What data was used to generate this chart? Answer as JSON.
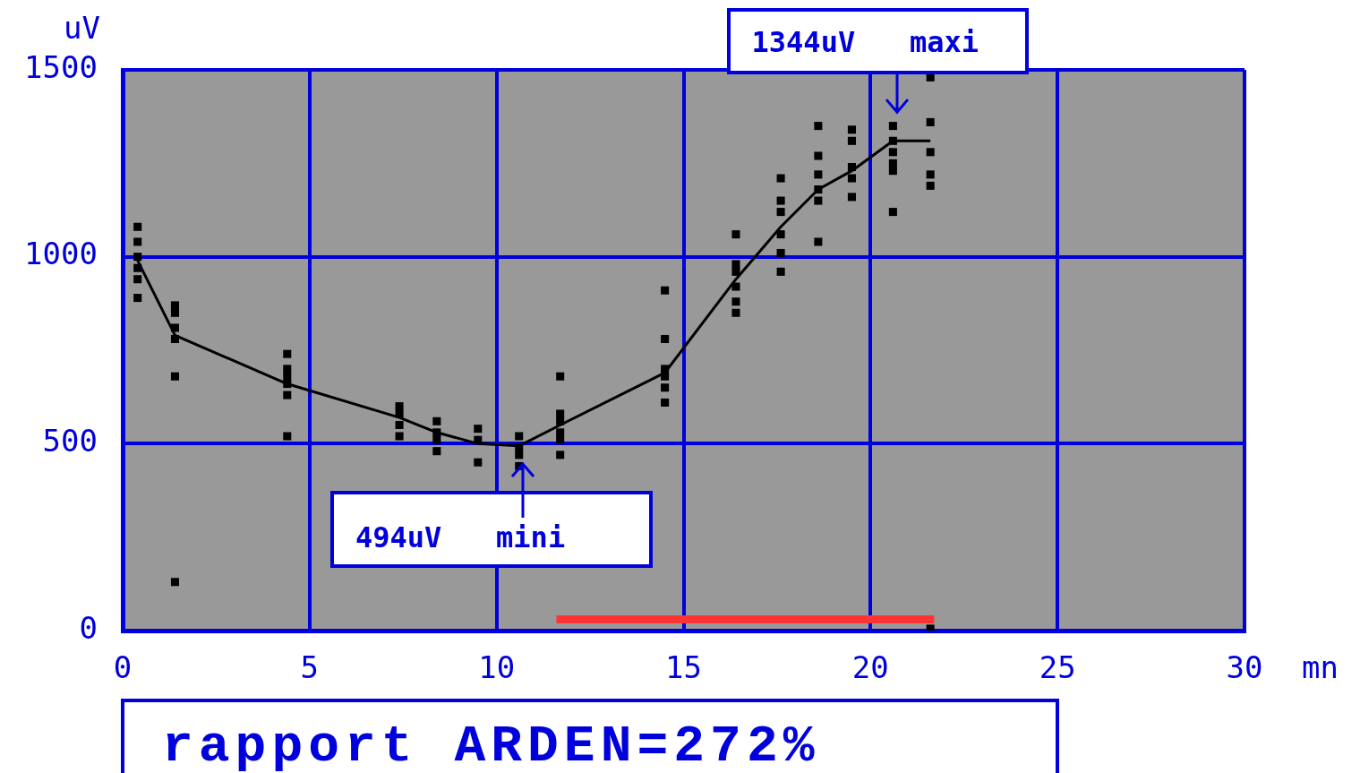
{
  "chart_data": {
    "type": "scatter",
    "xlabel": "mn",
    "ylabel": "uV",
    "xlim": [
      0,
      30
    ],
    "xticks": [
      0,
      5,
      10,
      15,
      20,
      25,
      30
    ],
    "ylim": [
      0,
      1500
    ],
    "yticks": [
      0,
      500,
      1000,
      1500
    ],
    "grid": true,
    "series": [
      {
        "type": "scatter",
        "color": "#000000",
        "marker": "square",
        "x": [
          0.4,
          0.4,
          0.4,
          0.4,
          0.4,
          0.4,
          1.4,
          1.4,
          1.4,
          1.4,
          1.4,
          1.4,
          4.4,
          4.4,
          4.4,
          4.4,
          4.4,
          4.4,
          7.4,
          7.4,
          7.4,
          7.4,
          8.4,
          8.4,
          8.4,
          8.4,
          9.5,
          9.5,
          9.5,
          10.6,
          10.6,
          10.6,
          10.6,
          11.7,
          11.7,
          11.7,
          11.7,
          11.7,
          11.7,
          14.5,
          14.5,
          14.5,
          14.5,
          14.5,
          14.5,
          16.4,
          16.4,
          16.4,
          16.4,
          16.4,
          16.4,
          17.6,
          17.6,
          17.6,
          17.6,
          17.6,
          17.6,
          18.6,
          18.6,
          18.6,
          18.6,
          18.6,
          18.6,
          19.5,
          19.5,
          19.5,
          19.5,
          19.5,
          20.6,
          20.6,
          20.6,
          20.6,
          20.6,
          20.6,
          21.6,
          21.6,
          21.6,
          21.6,
          21.6,
          21.6
        ],
        "values": [
          1080,
          1040,
          1000,
          970,
          940,
          890,
          870,
          850,
          810,
          780,
          680,
          130,
          740,
          700,
          680,
          660,
          630,
          520,
          600,
          580,
          550,
          520,
          560,
          530,
          510,
          480,
          540,
          510,
          450,
          520,
          490,
          470,
          440,
          680,
          580,
          560,
          530,
          510,
          470,
          910,
          780,
          700,
          680,
          650,
          610,
          1060,
          980,
          960,
          920,
          880,
          850,
          1210,
          1150,
          1120,
          1060,
          1010,
          960,
          1350,
          1270,
          1220,
          1180,
          1150,
          1040,
          1340,
          1310,
          1240,
          1210,
          1160,
          1350,
          1310,
          1280,
          1250,
          1230,
          1120,
          1480,
          1360,
          1280,
          1220,
          1190,
          5
        ]
      },
      {
        "type": "line",
        "color": "#000000",
        "marker": "none",
        "x": [
          0.4,
          1.4,
          4.4,
          7.4,
          8.4,
          9.5,
          10.6,
          11.7,
          14.5,
          16.4,
          17.6,
          18.6,
          19.5,
          20.6,
          21.6
        ],
        "values": [
          990,
          790,
          660,
          570,
          530,
          500,
          494,
          550,
          690,
          940,
          1080,
          1180,
          1230,
          1310,
          1310
        ]
      },
      {
        "type": "line",
        "color": "#ff3333",
        "marker": "none",
        "x": [
          11.6,
          21.7
        ],
        "values": [
          30,
          30
        ]
      }
    ],
    "annotations": [
      {
        "text": "1344uV maxi",
        "x": 20.7,
        "y": 1344
      },
      {
        "text": "494uV mini",
        "x": 10.7,
        "y": 494
      },
      "rapport ARDEN=272%"
    ]
  }
}
